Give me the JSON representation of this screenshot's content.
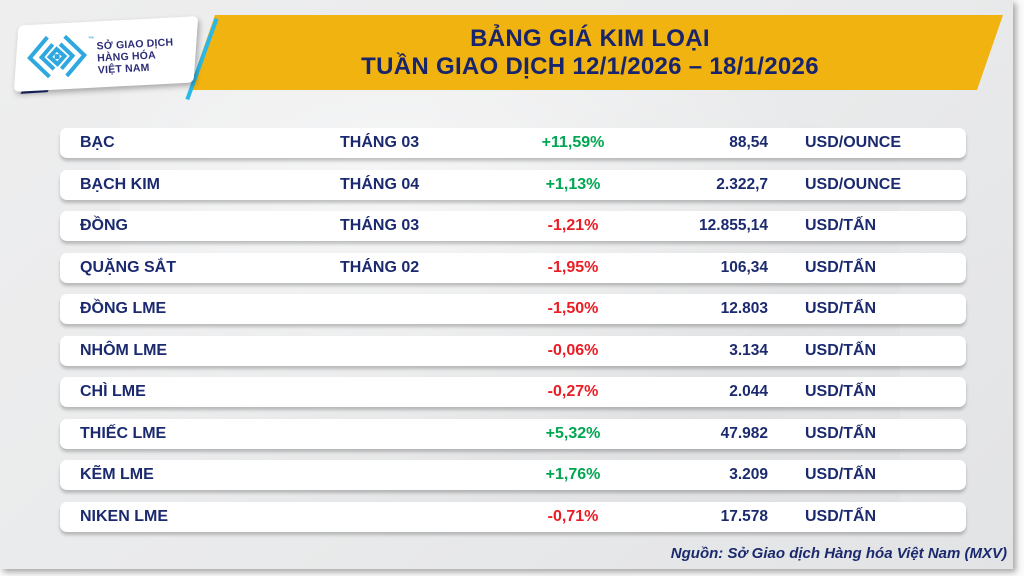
{
  "header": {
    "title_line1": "BẢNG GIÁ KIM LOẠI",
    "title_line2": "TUẦN GIAO DỊCH 12/1/2026 – 18/1/2026",
    "logo": {
      "tm": "™",
      "line1": "SỞ GIAO DỊCH",
      "line2": "HÀNG HÓA",
      "line3": "VIỆT NAM"
    }
  },
  "colors": {
    "banner_yellow": "#F0B310",
    "navy": "#1B2A6E",
    "up_green": "#00A651",
    "down_red": "#EC1C24",
    "logo_blue": "#2FA8DF"
  },
  "table": {
    "rows": [
      {
        "name": "BẠC",
        "month": "THÁNG 03",
        "change": "+11,59%",
        "direction": "up",
        "price": "88,54",
        "unit": "USD/OUNCE"
      },
      {
        "name": "BẠCH KIM",
        "month": "THÁNG 04",
        "change": "+1,13%",
        "direction": "up",
        "price": "2.322,7",
        "unit": "USD/OUNCE"
      },
      {
        "name": "ĐỒNG",
        "month": "THÁNG 03",
        "change": "-1,21%",
        "direction": "down",
        "price": "12.855,14",
        "unit": "USD/TẤN"
      },
      {
        "name": "QUẶNG SẮT",
        "month": "THÁNG 02",
        "change": "-1,95%",
        "direction": "down",
        "price": "106,34",
        "unit": "USD/TẤN"
      },
      {
        "name": "ĐỒNG LME",
        "month": "",
        "change": "-1,50%",
        "direction": "down",
        "price": "12.803",
        "unit": "USD/TẤN"
      },
      {
        "name": "NHÔM LME",
        "month": "",
        "change": "-0,06%",
        "direction": "down",
        "price": "3.134",
        "unit": "USD/TẤN"
      },
      {
        "name": "CHÌ LME",
        "month": "",
        "change": "-0,27%",
        "direction": "down",
        "price": "2.044",
        "unit": "USD/TẤN"
      },
      {
        "name": "THIẾC LME",
        "month": "",
        "change": "+5,32%",
        "direction": "up",
        "price": "47.982",
        "unit": "USD/TẤN"
      },
      {
        "name": "KẼM LME",
        "month": "",
        "change": "+1,76%",
        "direction": "up",
        "price": "3.209",
        "unit": "USD/TẤN"
      },
      {
        "name": "NIKEN LME",
        "month": "",
        "change": "-0,71%",
        "direction": "down",
        "price": "17.578",
        "unit": "USD/TẤN"
      }
    ]
  },
  "footer": {
    "source": "Nguồn: Sở Giao dịch Hàng hóa Việt Nam (MXV)"
  },
  "chart_data": {
    "type": "table",
    "title": "BẢNG GIÁ KIM LOẠI — TUẦN GIAO DỊCH 12/1/2026 – 18/1/2026",
    "rows": [
      {
        "commodity": "BẠC",
        "contract_month": "THÁNG 03",
        "change_pct": 11.59,
        "price": 88.54,
        "unit": "USD/OUNCE"
      },
      {
        "commodity": "BẠCH KIM",
        "contract_month": "THÁNG 04",
        "change_pct": 1.13,
        "price": 2322.7,
        "unit": "USD/OUNCE"
      },
      {
        "commodity": "ĐỒNG",
        "contract_month": "THÁNG 03",
        "change_pct": -1.21,
        "price": 12855.14,
        "unit": "USD/TẤN"
      },
      {
        "commodity": "QUẶNG SẮT",
        "contract_month": "THÁNG 02",
        "change_pct": -1.95,
        "price": 106.34,
        "unit": "USD/TẤN"
      },
      {
        "commodity": "ĐỒNG LME",
        "contract_month": "",
        "change_pct": -1.5,
        "price": 12803,
        "unit": "USD/TẤN"
      },
      {
        "commodity": "NHÔM LME",
        "contract_month": "",
        "change_pct": -0.06,
        "price": 3134,
        "unit": "USD/TẤN"
      },
      {
        "commodity": "CHÌ LME",
        "contract_month": "",
        "change_pct": -0.27,
        "price": 2044,
        "unit": "USD/TẤN"
      },
      {
        "commodity": "THIẾC LME",
        "contract_month": "",
        "change_pct": 5.32,
        "price": 47982,
        "unit": "USD/TẤN"
      },
      {
        "commodity": "KẼM LME",
        "contract_month": "",
        "change_pct": 1.76,
        "price": 3209,
        "unit": "USD/TẤN"
      },
      {
        "commodity": "NIKEN LME",
        "contract_month": "",
        "change_pct": -0.71,
        "price": 17578,
        "unit": "USD/TẤN"
      }
    ]
  }
}
